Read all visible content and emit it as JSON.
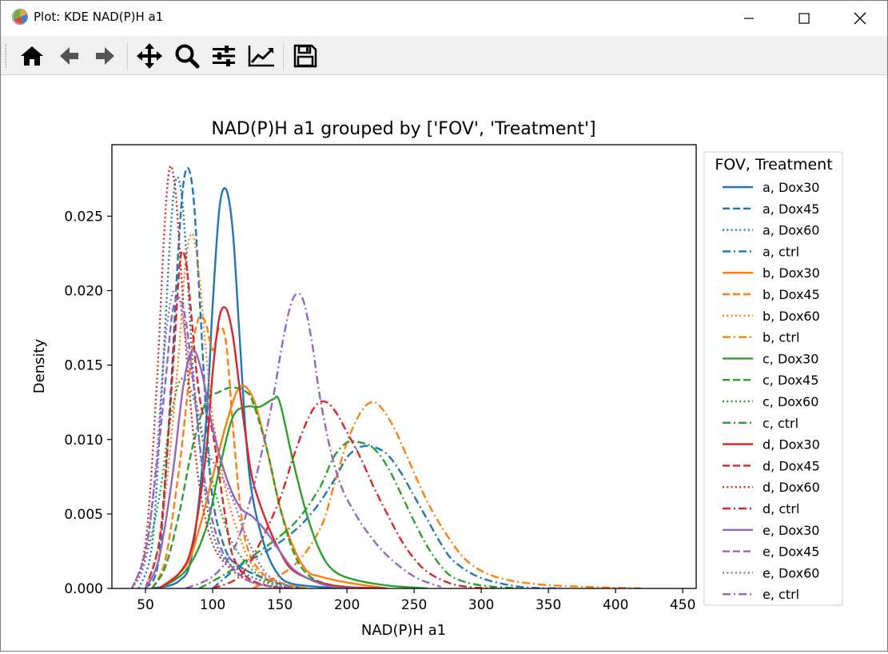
{
  "window": {
    "title": "Plot: KDE NAD(P)H a1"
  },
  "toolbar": {
    "tools": [
      {
        "name": "home-icon"
      },
      {
        "name": "back-arrow-icon"
      },
      {
        "name": "forward-arrow-icon"
      },
      {
        "name": "pan-icon"
      },
      {
        "name": "zoom-icon"
      },
      {
        "name": "subplots-config-icon"
      },
      {
        "name": "axes-edit-icon"
      },
      {
        "name": "save-icon"
      }
    ]
  },
  "colors": {
    "a": "#1f77b4",
    "b": "#ff7f0e",
    "c": "#2ca02c",
    "d": "#d62728",
    "e": "#9467bd"
  },
  "chart_data": {
    "type": "line",
    "title": "NAD(P)H a1 grouped by ['FOV', 'Treatment']",
    "xlabel": "NAD(P)H a1",
    "ylabel": "Density",
    "xlim": [
      25,
      460
    ],
    "ylim": [
      0,
      0.0298
    ],
    "xticks": [
      "50",
      "100",
      "150",
      "200",
      "250",
      "300",
      "350",
      "400",
      "450"
    ],
    "xtick_values": [
      50,
      100,
      150,
      200,
      250,
      300,
      350,
      400,
      450
    ],
    "yticks": [
      "0.000",
      "0.005",
      "0.010",
      "0.015",
      "0.020",
      "0.025"
    ],
    "ytick_values": [
      0,
      0.005,
      0.01,
      0.015,
      0.02,
      0.025
    ],
    "legend_title": "FOV, Treatment",
    "legend_position": "outside-right",
    "series": [
      {
        "name": "a, Dox30",
        "color": "a",
        "dash": "solid",
        "x": [
          55,
          75,
          85,
          95,
          100,
          105,
          110,
          115,
          120,
          125,
          130,
          140,
          150,
          160,
          180,
          200
        ],
        "y": [
          0,
          0.0005,
          0.0025,
          0.011,
          0.019,
          0.0255,
          0.0268,
          0.024,
          0.017,
          0.01,
          0.006,
          0.0025,
          0.0008,
          0.0003,
          0.0001,
          0
        ]
      },
      {
        "name": "a, Dox45",
        "color": "a",
        "dash": "dashed",
        "x": [
          50,
          60,
          68,
          74,
          78,
          82,
          86,
          90,
          95,
          100,
          110,
          120,
          130,
          150,
          170
        ],
        "y": [
          0,
          0.002,
          0.012,
          0.022,
          0.027,
          0.0282,
          0.026,
          0.02,
          0.012,
          0.006,
          0.0025,
          0.0015,
          0.001,
          0.0003,
          0
        ]
      },
      {
        "name": "a, Dox60",
        "color": "a",
        "dash": "dotted",
        "x": [
          45,
          55,
          62,
          68,
          72,
          76,
          80,
          86,
          95,
          105,
          120,
          140,
          160
        ],
        "y": [
          0,
          0.003,
          0.013,
          0.023,
          0.0272,
          0.027,
          0.023,
          0.014,
          0.006,
          0.0025,
          0.0012,
          0.0004,
          0
        ]
      },
      {
        "name": "a, ctrl",
        "color": "a",
        "dash": "dashdot",
        "x": [
          100,
          120,
          140,
          160,
          175,
          190,
          200,
          210,
          220,
          230,
          240,
          250,
          260,
          270,
          280,
          300,
          330,
          360
        ],
        "y": [
          0,
          0.0015,
          0.0025,
          0.0038,
          0.0052,
          0.0072,
          0.0088,
          0.0095,
          0.0095,
          0.009,
          0.0078,
          0.0062,
          0.0046,
          0.003,
          0.0018,
          0.0007,
          0.0001,
          0
        ]
      },
      {
        "name": "b, Dox30",
        "color": "b",
        "dash": "solid",
        "x": [
          60,
          80,
          90,
          100,
          110,
          120,
          130,
          140,
          150,
          160,
          170,
          180,
          200,
          230
        ],
        "y": [
          0,
          0.0015,
          0.004,
          0.0075,
          0.011,
          0.0135,
          0.0128,
          0.0095,
          0.0055,
          0.0028,
          0.0012,
          0.0008,
          0.0004,
          0
        ]
      },
      {
        "name": "b, Dox45",
        "color": "b",
        "dash": "dashed",
        "x": [
          55,
          65,
          75,
          80,
          85,
          90,
          95,
          100,
          105,
          110,
          115,
          120,
          125,
          135,
          150,
          170
        ],
        "y": [
          0,
          0.002,
          0.008,
          0.012,
          0.0162,
          0.0182,
          0.0178,
          0.016,
          0.0175,
          0.0165,
          0.011,
          0.006,
          0.003,
          0.0012,
          0.0004,
          0
        ]
      },
      {
        "name": "b, Dox60",
        "color": "b",
        "dash": "dotted",
        "x": [
          50,
          60,
          68,
          75,
          80,
          85,
          90,
          95,
          100,
          110,
          120,
          130,
          145,
          160
        ],
        "y": [
          0,
          0.003,
          0.009,
          0.016,
          0.022,
          0.0238,
          0.021,
          0.016,
          0.0115,
          0.0065,
          0.0035,
          0.0015,
          0.0004,
          0
        ]
      },
      {
        "name": "b, ctrl",
        "color": "b",
        "dash": "dashdot",
        "x": [
          130,
          160,
          180,
          190,
          200,
          210,
          218,
          225,
          235,
          245,
          260,
          275,
          290,
          310,
          340,
          380,
          420
        ],
        "y": [
          0,
          0.0015,
          0.004,
          0.0068,
          0.0098,
          0.0118,
          0.0125,
          0.0122,
          0.0108,
          0.0088,
          0.0058,
          0.0035,
          0.0018,
          0.0008,
          0.0003,
          0.0001,
          0
        ]
      },
      {
        "name": "c, Dox30",
        "color": "c",
        "dash": "solid",
        "x": [
          60,
          80,
          95,
          105,
          115,
          125,
          135,
          145,
          150,
          160,
          170,
          180,
          190,
          205,
          230,
          260
        ],
        "y": [
          0,
          0.0012,
          0.004,
          0.008,
          0.0115,
          0.0122,
          0.0122,
          0.0127,
          0.0125,
          0.0085,
          0.005,
          0.0025,
          0.0012,
          0.0006,
          0.0002,
          0
        ]
      },
      {
        "name": "c, Dox45",
        "color": "c",
        "dash": "dashed",
        "x": [
          55,
          65,
          75,
          85,
          95,
          105,
          115,
          125,
          130,
          140,
          150,
          160,
          170,
          185,
          210
        ],
        "y": [
          0,
          0.0015,
          0.005,
          0.0095,
          0.0125,
          0.0132,
          0.0135,
          0.0132,
          0.0125,
          0.0095,
          0.0055,
          0.0025,
          0.001,
          0.0003,
          0
        ]
      },
      {
        "name": "c, Dox60",
        "color": "c",
        "dash": "dotted",
        "x": [
          40,
          50,
          60,
          68,
          76,
          85,
          95,
          105,
          115,
          130,
          145,
          160
        ],
        "y": [
          0,
          0.002,
          0.006,
          0.011,
          0.014,
          0.013,
          0.009,
          0.0055,
          0.003,
          0.0012,
          0.0003,
          0
        ]
      },
      {
        "name": "c, ctrl",
        "color": "c",
        "dash": "dashdot",
        "x": [
          90,
          110,
          130,
          150,
          165,
          180,
          190,
          200,
          210,
          220,
          230,
          240,
          250,
          260,
          270,
          280,
          300,
          330
        ],
        "y": [
          0,
          0.001,
          0.0022,
          0.0035,
          0.0048,
          0.0068,
          0.0088,
          0.0098,
          0.0098,
          0.0094,
          0.0082,
          0.0064,
          0.0045,
          0.0028,
          0.0015,
          0.0007,
          0.0002,
          0
        ]
      },
      {
        "name": "d, Dox30",
        "color": "d",
        "dash": "solid",
        "x": [
          60,
          75,
          85,
          95,
          100,
          105,
          110,
          115,
          120,
          125,
          130,
          140,
          150,
          160,
          180,
          200,
          230
        ],
        "y": [
          0,
          0.001,
          0.003,
          0.009,
          0.0145,
          0.0182,
          0.0188,
          0.017,
          0.0135,
          0.01,
          0.0072,
          0.0045,
          0.0025,
          0.0012,
          0.0004,
          0.0001,
          0
        ]
      },
      {
        "name": "d, Dox45",
        "color": "d",
        "dash": "dashed",
        "x": [
          50,
          60,
          66,
          72,
          76,
          80,
          84,
          88,
          92,
          96,
          100,
          105,
          110,
          115,
          125,
          140,
          160
        ],
        "y": [
          0,
          0.003,
          0.009,
          0.017,
          0.0222,
          0.022,
          0.0185,
          0.0145,
          0.012,
          0.0115,
          0.0105,
          0.0075,
          0.0045,
          0.0022,
          0.0008,
          0.0002,
          0
        ]
      },
      {
        "name": "d, Dox60",
        "color": "d",
        "dash": "dotted",
        "x": [
          40,
          50,
          58,
          64,
          68,
          72,
          76,
          82,
          90,
          100,
          115,
          130,
          150
        ],
        "y": [
          0,
          0.003,
          0.013,
          0.024,
          0.0282,
          0.027,
          0.022,
          0.014,
          0.007,
          0.003,
          0.0012,
          0.0004,
          0
        ]
      },
      {
        "name": "d, ctrl",
        "color": "d",
        "dash": "dashdot",
        "x": [
          100,
          120,
          135,
          150,
          160,
          170,
          178,
          185,
          192,
          200,
          210,
          220,
          230,
          240,
          250,
          260,
          275,
          290,
          310
        ],
        "y": [
          0,
          0.0008,
          0.003,
          0.006,
          0.0088,
          0.0112,
          0.0124,
          0.0125,
          0.0118,
          0.0105,
          0.0088,
          0.0068,
          0.005,
          0.0033,
          0.002,
          0.0011,
          0.0004,
          0.0001,
          0
        ]
      },
      {
        "name": "e, Dox30",
        "color": "e",
        "dash": "solid",
        "x": [
          50,
          60,
          70,
          78,
          85,
          92,
          100,
          110,
          120,
          130,
          140,
          150,
          160,
          175,
          190,
          210
        ],
        "y": [
          0,
          0.002,
          0.0075,
          0.0135,
          0.016,
          0.0145,
          0.0108,
          0.0075,
          0.0055,
          0.0048,
          0.0038,
          0.0025,
          0.0013,
          0.0005,
          0.0001,
          0
        ]
      },
      {
        "name": "e, Dox45",
        "color": "e",
        "dash": "dashed",
        "x": [
          40,
          50,
          58,
          65,
          70,
          75,
          80,
          86,
          92,
          100,
          110,
          125,
          140,
          160
        ],
        "y": [
          0,
          0.0025,
          0.008,
          0.014,
          0.0185,
          0.0195,
          0.018,
          0.0135,
          0.0085,
          0.0045,
          0.002,
          0.0006,
          0.0002,
          0
        ]
      },
      {
        "name": "e, Dox60",
        "color": "e",
        "dash": "dotted",
        "x": [
          40,
          50,
          58,
          64,
          70,
          75,
          80,
          88,
          95,
          105,
          115,
          125,
          140,
          160
        ],
        "y": [
          0,
          0.002,
          0.0085,
          0.016,
          0.0198,
          0.0195,
          0.0168,
          0.0125,
          0.0095,
          0.0078,
          0.006,
          0.0035,
          0.001,
          0
        ]
      },
      {
        "name": "e, ctrl",
        "color": "e",
        "dash": "dashdot",
        "x": [
          80,
          100,
          115,
          125,
          135,
          145,
          152,
          158,
          163,
          168,
          174,
          180,
          188,
          196,
          205,
          215,
          230,
          250,
          270
        ],
        "y": [
          0,
          0.0008,
          0.0025,
          0.005,
          0.0085,
          0.0128,
          0.0165,
          0.019,
          0.0198,
          0.0192,
          0.0165,
          0.0128,
          0.0092,
          0.0068,
          0.0052,
          0.0038,
          0.0022,
          0.0008,
          0.0001
        ]
      }
    ]
  }
}
